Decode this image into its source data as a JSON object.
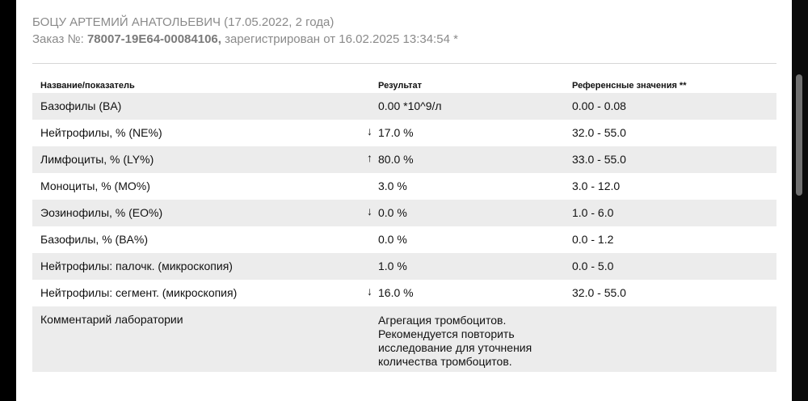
{
  "patient": {
    "name": "БОЦУ АРТЕМИЙ АНАТОЛЬЕВИЧ",
    "birth_info": "(17.05.2022, 2 года)"
  },
  "order": {
    "label": "Заказ №:",
    "number": "78007-19E64-00084106,",
    "registered": "зарегистрирован от 16.02.2025 13:34:54 *"
  },
  "table": {
    "headers": {
      "name": "Название/показатель",
      "result": "Результат",
      "reference": "Референсные значения **"
    },
    "rows": [
      {
        "name": "Базофилы (BA)",
        "flag": "",
        "result": "0.00 *10^9/л",
        "reference": "0.00 - 0.08"
      },
      {
        "name": "Нейтрофилы, % (NE%)",
        "flag": "↓",
        "result": "17.0 %",
        "reference": "32.0 - 55.0"
      },
      {
        "name": "Лимфоциты, % (LY%)",
        "flag": "↑",
        "result": "80.0 %",
        "reference": "33.0 - 55.0"
      },
      {
        "name": "Моноциты, % (MO%)",
        "flag": "",
        "result": "3.0 %",
        "reference": "3.0 - 12.0"
      },
      {
        "name": "Эозинофилы, % (EO%)",
        "flag": "↓",
        "result": "0.0 %",
        "reference": "1.0 - 6.0"
      },
      {
        "name": "Базофилы, % (BA%)",
        "flag": "",
        "result": "0.0 %",
        "reference": "0.0 - 1.2"
      },
      {
        "name": "Нейтрофилы: палочк. (микроскопия)",
        "flag": "",
        "result": "1.0 %",
        "reference": "0.0 - 5.0"
      },
      {
        "name": "Нейтрофилы: сегмент. (микроскопия)",
        "flag": "↓",
        "result": "16.0 %",
        "reference": "32.0 - 55.0"
      }
    ],
    "comment": {
      "label": "Комментарий лаборатории",
      "text": "Агрегация тромбоцитов. Рекомендуется повторить исследование для уточнения количества тромбоцитов."
    }
  }
}
